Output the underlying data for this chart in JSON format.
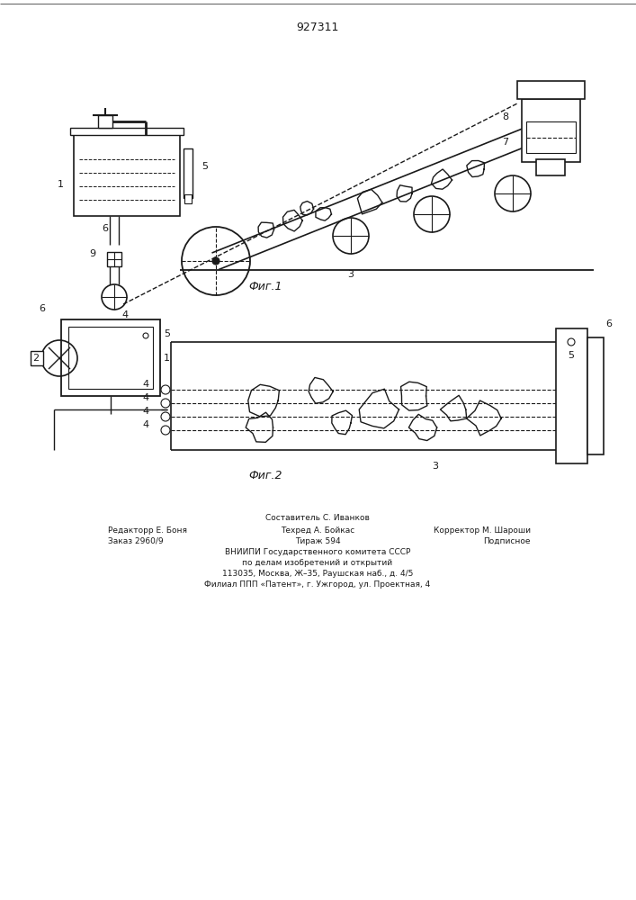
{
  "title": "927311",
  "fig1_caption": "Фиг.1",
  "fig2_caption": "Фиг.2",
  "bottom_text_line1": "Составитель С. Иванков",
  "bottom_text_line2_left": "Редакторр Е. Боня",
  "bottom_text_line2_mid": "Техред А. Бойкас",
  "bottom_text_line2_right": "Корректор М. Шароши",
  "bottom_text_line3_left": "Заказ 2960/9",
  "bottom_text_line3_mid": "Тираж 594",
  "bottom_text_line3_right": "Подписное",
  "bottom_text_line4": "ВНИИПИ Государственного комитета СССР",
  "bottom_text_line5": "по делам изобретений и открытий",
  "bottom_text_line6": "113035, Москва, Ж–35, Раушская наб., д. 4/5",
  "bottom_text_line7": "Филиал ППП «Патент», г. Ужгород, ул. Проектная, 4",
  "bg_color": "#ffffff",
  "line_color": "#1a1a1a",
  "label_fontsize": 8,
  "caption_fontsize": 9
}
